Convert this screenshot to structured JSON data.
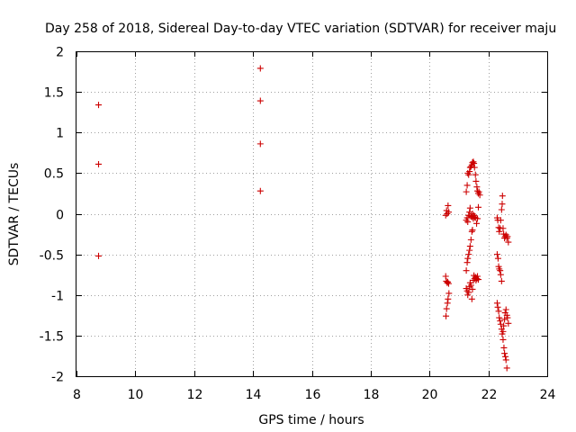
{
  "chart_data": {
    "type": "scatter",
    "title": "Day 258 of 2018, Sidereal Day-to-day VTEC variation (SDTVAR) for receiver maju",
    "xlabel": "GPS time / hours",
    "ylabel": "SDTVAR / TECUs",
    "xlim": [
      8,
      24
    ],
    "ylim": [
      -2,
      2
    ],
    "xticks": [
      "8",
      "10",
      "12",
      "14",
      "16",
      "18",
      "20",
      "22",
      "24"
    ],
    "yticks": [
      "2",
      "1.5",
      "1",
      "0.5",
      "0",
      "-0.5",
      "-1",
      "-1.5",
      "-2"
    ],
    "grid": true,
    "marker": "+",
    "color": "#cc0000",
    "series": [
      {
        "name": "SDTVAR",
        "points": [
          [
            8.75,
            1.34
          ],
          [
            8.75,
            0.61
          ],
          [
            8.75,
            -0.52
          ],
          [
            14.25,
            1.79
          ],
          [
            14.25,
            1.39
          ],
          [
            14.25,
            0.86
          ],
          [
            14.25,
            0.28
          ],
          [
            20.55,
            -0.02
          ],
          [
            20.58,
            0.04
          ],
          [
            20.6,
            0.0
          ],
          [
            20.63,
            0.1
          ],
          [
            20.65,
            0.02
          ],
          [
            20.55,
            -0.77
          ],
          [
            20.57,
            -0.83
          ],
          [
            20.6,
            -0.85
          ],
          [
            20.62,
            -0.84
          ],
          [
            20.65,
            -0.86
          ],
          [
            20.56,
            -1.26
          ],
          [
            20.58,
            -1.17
          ],
          [
            20.61,
            -1.1
          ],
          [
            20.63,
            -1.05
          ],
          [
            20.66,
            -0.98
          ],
          [
            21.25,
            0.27
          ],
          [
            21.28,
            0.35
          ],
          [
            21.3,
            0.5
          ],
          [
            21.33,
            0.48
          ],
          [
            21.36,
            0.52
          ],
          [
            21.38,
            0.57
          ],
          [
            21.41,
            0.58
          ],
          [
            21.44,
            0.6
          ],
          [
            21.46,
            0.63
          ],
          [
            21.49,
            0.64
          ],
          [
            21.51,
            0.62
          ],
          [
            21.53,
            0.57
          ],
          [
            21.56,
            0.48
          ],
          [
            21.58,
            0.4
          ],
          [
            21.61,
            0.33
          ],
          [
            21.63,
            0.28
          ],
          [
            21.66,
            0.25
          ],
          [
            21.68,
            0.27
          ],
          [
            21.71,
            0.23
          ],
          [
            21.25,
            -0.08
          ],
          [
            21.28,
            -0.05
          ],
          [
            21.3,
            -0.1
          ],
          [
            21.33,
            -0.02
          ],
          [
            21.36,
            0.02
          ],
          [
            21.38,
            0.07
          ],
          [
            21.41,
            -0.03
          ],
          [
            21.44,
            -0.04
          ],
          [
            21.46,
            0.0
          ],
          [
            21.49,
            -0.06
          ],
          [
            21.51,
            -0.02
          ],
          [
            21.53,
            -0.04
          ],
          [
            21.56,
            -0.05
          ],
          [
            21.6,
            -0.12
          ],
          [
            21.63,
            -0.06
          ],
          [
            21.66,
            0.08
          ],
          [
            21.25,
            -0.7
          ],
          [
            21.28,
            -0.6
          ],
          [
            21.3,
            -0.55
          ],
          [
            21.33,
            -0.5
          ],
          [
            21.36,
            -0.45
          ],
          [
            21.38,
            -0.4
          ],
          [
            21.41,
            -0.32
          ],
          [
            21.44,
            -0.22
          ],
          [
            21.46,
            -0.2
          ],
          [
            21.25,
            -0.92
          ],
          [
            21.28,
            -0.95
          ],
          [
            21.3,
            -1.0
          ],
          [
            21.33,
            -0.97
          ],
          [
            21.36,
            -0.9
          ],
          [
            21.38,
            -0.85
          ],
          [
            21.41,
            -0.88
          ],
          [
            21.44,
            -1.05
          ],
          [
            21.46,
            -0.93
          ],
          [
            21.49,
            -0.82
          ],
          [
            21.51,
            -0.76
          ],
          [
            21.53,
            -0.8
          ],
          [
            21.56,
            -0.78
          ],
          [
            21.58,
            -0.82
          ],
          [
            21.61,
            -0.8
          ],
          [
            21.63,
            -0.77
          ],
          [
            21.66,
            -0.81
          ],
          [
            22.3,
            -0.05
          ],
          [
            22.32,
            -0.08
          ],
          [
            22.35,
            -0.17
          ],
          [
            22.37,
            -0.22
          ],
          [
            22.4,
            -0.18
          ],
          [
            22.42,
            -0.08
          ],
          [
            22.45,
            0.05
          ],
          [
            22.47,
            0.12
          ],
          [
            22.48,
            0.22
          ],
          [
            22.5,
            -0.18
          ],
          [
            22.52,
            -0.25
          ],
          [
            22.55,
            -0.3
          ],
          [
            22.57,
            -0.28
          ],
          [
            22.6,
            -0.26
          ],
          [
            22.63,
            -0.3
          ],
          [
            22.65,
            -0.28
          ],
          [
            22.68,
            -0.35
          ],
          [
            22.3,
            -0.5
          ],
          [
            22.33,
            -0.55
          ],
          [
            22.35,
            -0.65
          ],
          [
            22.37,
            -0.68
          ],
          [
            22.4,
            -0.7
          ],
          [
            22.42,
            -0.75
          ],
          [
            22.45,
            -0.83
          ],
          [
            22.3,
            -1.1
          ],
          [
            22.32,
            -1.15
          ],
          [
            22.35,
            -1.2
          ],
          [
            22.37,
            -1.28
          ],
          [
            22.4,
            -1.32
          ],
          [
            22.42,
            -1.36
          ],
          [
            22.45,
            -1.42
          ],
          [
            22.47,
            -1.48
          ],
          [
            22.5,
            -1.45
          ],
          [
            22.52,
            -1.38
          ],
          [
            22.55,
            -1.3
          ],
          [
            22.57,
            -1.22
          ],
          [
            22.6,
            -1.18
          ],
          [
            22.63,
            -1.25
          ],
          [
            22.65,
            -1.28
          ],
          [
            22.68,
            -1.35
          ],
          [
            22.5,
            -1.55
          ],
          [
            22.53,
            -1.65
          ],
          [
            22.55,
            -1.72
          ],
          [
            22.58,
            -1.76
          ],
          [
            22.6,
            -1.8
          ],
          [
            22.63,
            -1.9
          ]
        ]
      }
    ]
  }
}
